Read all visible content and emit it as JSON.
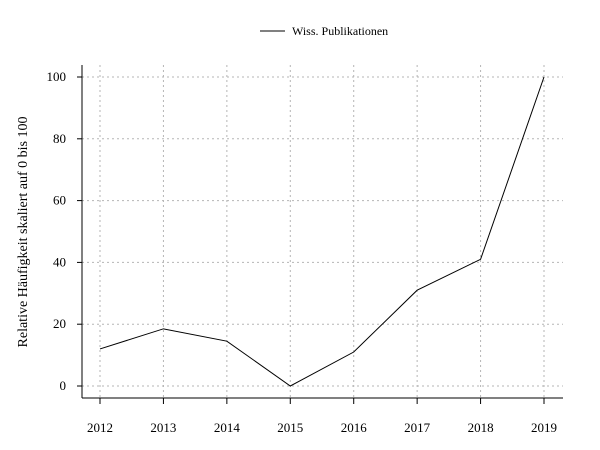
{
  "chart_data": {
    "type": "line",
    "x": [
      2012,
      2013,
      2014,
      2015,
      2016,
      2017,
      2018,
      2019
    ],
    "series": [
      {
        "name": "Wiss. Publikationen",
        "values": [
          12,
          18.5,
          14.5,
          0,
          11,
          31,
          41,
          100
        ]
      }
    ],
    "ylabel": "Relative Häufigkeit skaliert auf 0 bis 100",
    "xlabel": "",
    "title": "",
    "ylim": [
      0,
      100
    ],
    "xlim": [
      2012,
      2019
    ],
    "yticks": [
      0,
      20,
      40,
      60,
      80,
      100
    ],
    "xticks": [
      "2012",
      "2013",
      "2014",
      "2015",
      "2016",
      "2017",
      "2018",
      "2019"
    ],
    "grid": true,
    "legend_position": "top-center",
    "series_color": "#000000"
  }
}
